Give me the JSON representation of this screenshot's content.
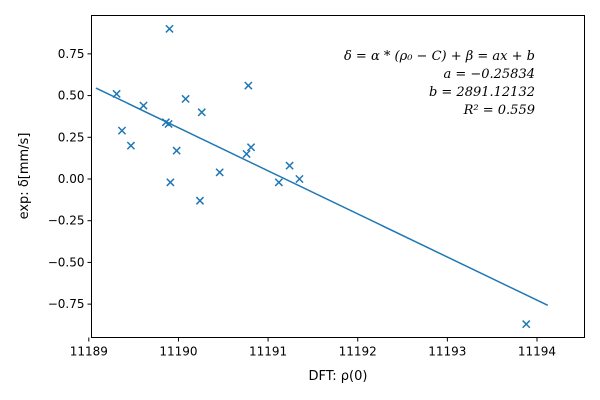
{
  "chart_data": {
    "type": "scatter",
    "xlabel": "DFT: ρ(0)",
    "ylabel": "exp: δ[mm/s]",
    "xlim": [
      11189.03,
      11194.53
    ],
    "ylim": [
      -0.95,
      0.98
    ],
    "xticks": [
      11189,
      11190,
      11191,
      11192,
      11193,
      11194
    ],
    "yticks": [
      -0.75,
      -0.5,
      -0.25,
      0.0,
      0.25,
      0.5,
      0.75
    ],
    "ytick_labels": [
      "−0.75",
      "−0.50",
      "−0.25",
      "0.00",
      "0.25",
      "0.50",
      "0.75"
    ],
    "grid": false,
    "marker": "x",
    "color": "#1f77b4",
    "points": [
      {
        "x": 11189.31,
        "y": 0.51
      },
      {
        "x": 11189.37,
        "y": 0.29
      },
      {
        "x": 11189.47,
        "y": 0.2
      },
      {
        "x": 11189.61,
        "y": 0.44
      },
      {
        "x": 11189.86,
        "y": 0.34
      },
      {
        "x": 11189.89,
        "y": 0.33
      },
      {
        "x": 11189.9,
        "y": 0.9
      },
      {
        "x": 11189.91,
        "y": -0.02
      },
      {
        "x": 11189.98,
        "y": 0.17
      },
      {
        "x": 11190.08,
        "y": 0.48
      },
      {
        "x": 11190.24,
        "y": -0.13
      },
      {
        "x": 11190.26,
        "y": 0.4
      },
      {
        "x": 11190.46,
        "y": 0.04
      },
      {
        "x": 11190.76,
        "y": 0.15
      },
      {
        "x": 11190.78,
        "y": 0.56
      },
      {
        "x": 11190.81,
        "y": 0.19
      },
      {
        "x": 11191.12,
        "y": -0.02
      },
      {
        "x": 11191.24,
        "y": 0.08
      },
      {
        "x": 11191.35,
        "y": 0.0
      },
      {
        "x": 11193.88,
        "y": -0.87
      }
    ],
    "fit_line": {
      "x": [
        11189.08,
        11194.12
      ],
      "y": [
        0.545,
        -0.757
      ]
    },
    "annotation_lines": [
      "δ = α * (ρ₀ − C) + β = ax + b",
      "a = −0.25834",
      "b = 2891.12132",
      "R² = 0.559"
    ]
  }
}
